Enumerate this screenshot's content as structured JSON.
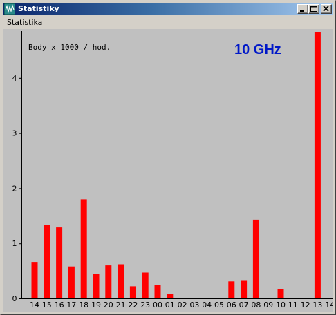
{
  "window": {
    "title": "Statistiky",
    "menu": [
      "Statistika"
    ]
  },
  "icons": {
    "app": "wave-window-icon",
    "minimize": "minimize-icon",
    "maximize": "maximize-icon",
    "close": "close-icon"
  },
  "colors": {
    "bar": "#ff0000",
    "band_label": "#0018c8",
    "plot_bg": "#c0c0c0"
  },
  "chart_data": {
    "type": "bar",
    "title": "10 GHz",
    "ylabel": "Body x 1000 / hod.",
    "xlabel": "",
    "ylim": [
      0,
      4.85
    ],
    "yticks": [
      "0",
      "1",
      "2",
      "3",
      "4"
    ],
    "categories": [
      "14",
      "15",
      "16",
      "17",
      "18",
      "19",
      "20",
      "21",
      "22",
      "23",
      "00",
      "01",
      "02",
      "03",
      "04",
      "05",
      "06",
      "07",
      "08",
      "09",
      "10",
      "11",
      "12",
      "13",
      "14"
    ],
    "values": [
      0.65,
      1.33,
      1.29,
      0.58,
      1.8,
      0.45,
      0.6,
      0.62,
      0.22,
      0.47,
      0.25,
      0.08,
      0,
      0,
      0,
      0,
      0.31,
      0.32,
      1.43,
      0,
      0.17,
      0,
      0,
      4.83,
      0
    ],
    "grid": false
  }
}
